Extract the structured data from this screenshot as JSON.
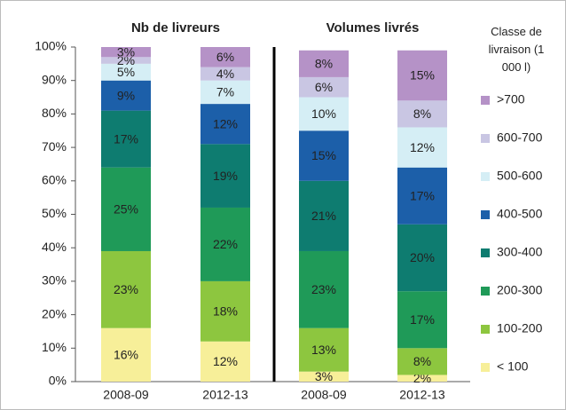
{
  "chart_data": {
    "type": "stacked_bar",
    "panel_titles": [
      "Nb de livreurs",
      "Volumes livrés"
    ],
    "legend_title": "Classe de livraison (1 000 l)",
    "categories": [
      "2008-09",
      "2012-13",
      "2008-09",
      "2012-13"
    ],
    "series": [
      {
        "name": "< 100",
        "color": "#f7ef99",
        "values": [
          16,
          12,
          3,
          2
        ],
        "value_labels": [
          "16%",
          "12%",
          "3%",
          "2%"
        ]
      },
      {
        "name": "100-200",
        "color": "#8dc63f",
        "values": [
          23,
          18,
          13,
          8
        ],
        "value_labels": [
          "23%",
          "18%",
          "13%",
          "8%"
        ]
      },
      {
        "name": "200-300",
        "color": "#1f9a58",
        "values": [
          25,
          22,
          23,
          17
        ],
        "value_labels": [
          "25%",
          "22%",
          "23%",
          "17%"
        ]
      },
      {
        "name": "300-400",
        "color": "#0e7c70",
        "values": [
          17,
          19,
          21,
          20
        ],
        "value_labels": [
          "17%",
          "19%",
          "21%",
          "20%"
        ]
      },
      {
        "name": "400-500",
        "color": "#1c5fa9",
        "values": [
          9,
          12,
          15,
          17
        ],
        "value_labels": [
          "9%",
          "12%",
          "15%",
          "17%"
        ]
      },
      {
        "name": "500-600",
        "color": "#d5eef5",
        "values": [
          5,
          7,
          10,
          12
        ],
        "value_labels": [
          "5%",
          "7%",
          "10%",
          "12%"
        ]
      },
      {
        "name": "600-700",
        "color": "#c9c6e3",
        "values": [
          2,
          4,
          6,
          8
        ],
        "value_labels": [
          "2%",
          "4%",
          "6%",
          "8%"
        ]
      },
      {
        "name": ">700",
        "color": "#b592c7",
        "values": [
          3,
          6,
          8,
          15
        ],
        "value_labels": [
          "3%",
          "6%",
          "8%",
          "15%"
        ]
      }
    ],
    "ylim": [
      0,
      100
    ],
    "yticks": [
      {
        "value": 0,
        "label": "0%"
      },
      {
        "value": 10,
        "label": "10%"
      },
      {
        "value": 20,
        "label": "20%"
      },
      {
        "value": 30,
        "label": "30%"
      },
      {
        "value": 40,
        "label": "40%"
      },
      {
        "value": 50,
        "label": "50%"
      },
      {
        "value": 60,
        "label": "60%"
      },
      {
        "value": 70,
        "label": "70%"
      },
      {
        "value": 80,
        "label": "80%"
      },
      {
        "value": 90,
        "label": "90%"
      },
      {
        "value": 100,
        "label": "100%"
      }
    ]
  }
}
